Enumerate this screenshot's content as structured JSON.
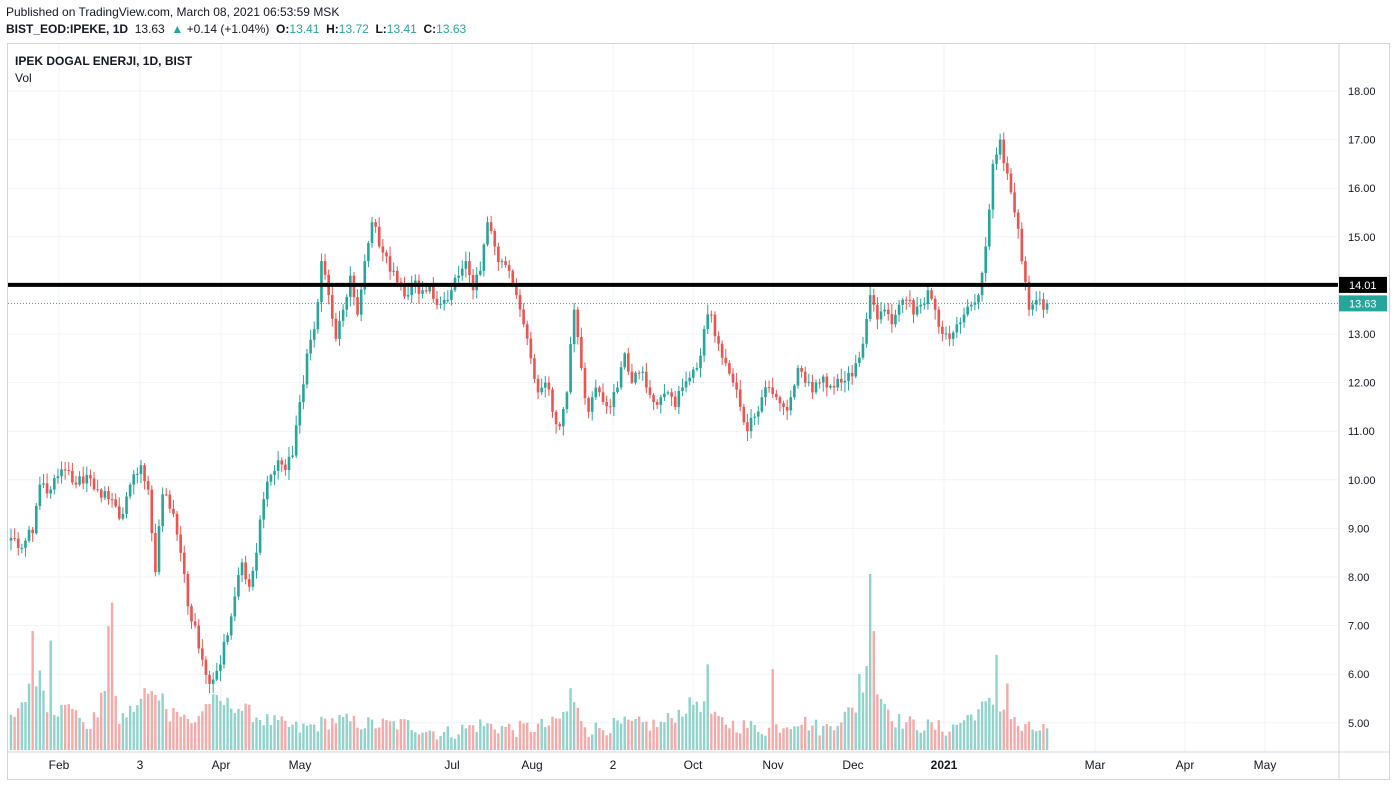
{
  "header": {
    "published": "Published on TradingView.com, March 08, 2021 06:53:59 MSK",
    "symbol": "BIST_EOD:IPEKE, 1D",
    "last": "13.63",
    "arrow": "▲",
    "change": "+0.14 (+1.04%)",
    "o_label": "O:",
    "o_val": "13.41",
    "h_label": "H:",
    "h_val": "13.72",
    "l_label": "L:",
    "l_val": "13.41",
    "c_label": "C:",
    "c_val": "13.63"
  },
  "legend": {
    "title": "IPEK DOGAL ENERJI, 1D, BIST",
    "vol": "Vol"
  },
  "chart_data": {
    "type": "candlestick",
    "title": "IPEK DOGAL ENERJI, 1D, BIST",
    "ylim": [
      4.4,
      18.5
    ],
    "y_ticks": [
      "5.00",
      "6.00",
      "7.00",
      "8.00",
      "9.00",
      "10.00",
      "11.00",
      "12.00",
      "13.00",
      "14.00",
      "15.00",
      "16.00",
      "17.00",
      "18.00"
    ],
    "x_ticks": [
      "Feb",
      "3",
      "Apr",
      "May",
      "Jul",
      "Aug",
      "2",
      "Oct",
      "Nov",
      "Dec",
      "2021",
      "Mar",
      "Apr",
      "May"
    ],
    "bold_tick": "2021",
    "grid": true,
    "horizontal_line": {
      "value": 14.01,
      "label": "14.01",
      "color": "#000000"
    },
    "last_price": {
      "value": 13.63,
      "label": "13.63",
      "color": "#26a69a"
    },
    "colors": {
      "up": "#26a69a",
      "down": "#ef5350",
      "up_vol": "#8fd3cb",
      "down_vol": "#f5a9a8"
    },
    "anchors": [
      [
        0,
        8.8
      ],
      [
        3,
        8.6
      ],
      [
        6,
        8.9
      ],
      [
        8,
        9.9
      ],
      [
        11,
        9.8
      ],
      [
        15,
        10.2
      ],
      [
        18,
        9.9
      ],
      [
        21,
        10.1
      ],
      [
        24,
        9.8
      ],
      [
        27,
        9.6
      ],
      [
        30,
        9.2
      ],
      [
        33,
        9.9
      ],
      [
        36,
        10.3
      ],
      [
        38,
        9.8
      ],
      [
        40,
        8.1
      ],
      [
        42,
        9.7
      ],
      [
        45,
        9.3
      ],
      [
        47,
        8.5
      ],
      [
        49,
        7.4
      ],
      [
        51,
        7.0
      ],
      [
        53,
        6.3
      ],
      [
        55,
        5.8
      ],
      [
        58,
        6.2
      ],
      [
        60,
        6.8
      ],
      [
        62,
        7.6
      ],
      [
        64,
        8.3
      ],
      [
        66,
        7.8
      ],
      [
        68,
        8.5
      ],
      [
        70,
        9.6
      ],
      [
        72,
        10.1
      ],
      [
        74,
        10.4
      ],
      [
        76,
        10.2
      ],
      [
        78,
        10.5
      ],
      [
        80,
        11.6
      ],
      [
        82,
        12.6
      ],
      [
        84,
        13.1
      ],
      [
        86,
        14.5
      ],
      [
        88,
        13.8
      ],
      [
        90,
        12.9
      ],
      [
        92,
        13.5
      ],
      [
        94,
        14.2
      ],
      [
        96,
        13.4
      ],
      [
        98,
        14.5
      ],
      [
        100,
        15.3
      ],
      [
        102,
        14.8
      ],
      [
        104,
        14.6
      ],
      [
        106,
        14.3
      ],
      [
        108,
        14.0
      ],
      [
        110,
        13.8
      ],
      [
        112,
        14.1
      ],
      [
        114,
        13.9
      ],
      [
        116,
        14.0
      ],
      [
        118,
        13.6
      ],
      [
        120,
        13.7
      ],
      [
        122,
        13.9
      ],
      [
        124,
        14.2
      ],
      [
        126,
        14.5
      ],
      [
        128,
        13.9
      ],
      [
        130,
        14.3
      ],
      [
        132,
        15.3
      ],
      [
        134,
        14.8
      ],
      [
        136,
        14.5
      ],
      [
        138,
        14.3
      ],
      [
        140,
        13.8
      ],
      [
        142,
        13.2
      ],
      [
        144,
        12.5
      ],
      [
        146,
        11.8
      ],
      [
        148,
        12.0
      ],
      [
        150,
        11.4
      ],
      [
        152,
        11.1
      ],
      [
        154,
        11.8
      ],
      [
        156,
        13.5
      ],
      [
        158,
        12.3
      ],
      [
        160,
        11.4
      ],
      [
        162,
        11.9
      ],
      [
        164,
        11.6
      ],
      [
        166,
        11.5
      ],
      [
        168,
        11.9
      ],
      [
        170,
        12.6
      ],
      [
        172,
        12.0
      ],
      [
        174,
        12.2
      ],
      [
        176,
        11.9
      ],
      [
        178,
        11.6
      ],
      [
        180,
        11.7
      ],
      [
        182,
        11.8
      ],
      [
        184,
        11.5
      ],
      [
        186,
        11.9
      ],
      [
        188,
        12.1
      ],
      [
        190,
        12.3
      ],
      [
        192,
        13.1
      ],
      [
        194,
        13.4
      ],
      [
        196,
        12.8
      ],
      [
        198,
        12.4
      ],
      [
        200,
        12.0
      ],
      [
        202,
        11.5
      ],
      [
        204,
        11.0
      ],
      [
        206,
        11.3
      ],
      [
        208,
        11.7
      ],
      [
        210,
        11.9
      ],
      [
        212,
        11.7
      ],
      [
        214,
        11.5
      ],
      [
        216,
        11.7
      ],
      [
        218,
        12.3
      ],
      [
        220,
        12.0
      ],
      [
        222,
        11.8
      ],
      [
        224,
        12.0
      ],
      [
        226,
        11.9
      ],
      [
        228,
        11.9
      ],
      [
        230,
        12.0
      ],
      [
        232,
        12.2
      ],
      [
        234,
        12.4
      ],
      [
        236,
        12.8
      ],
      [
        238,
        13.8
      ],
      [
        240,
        13.3
      ],
      [
        242,
        13.5
      ],
      [
        244,
        13.2
      ],
      [
        246,
        13.6
      ],
      [
        248,
        13.7
      ],
      [
        250,
        13.4
      ],
      [
        252,
        13.6
      ],
      [
        254,
        13.9
      ],
      [
        256,
        13.5
      ],
      [
        258,
        13.0
      ],
      [
        260,
        12.9
      ],
      [
        262,
        13.2
      ],
      [
        264,
        13.4
      ],
      [
        266,
        13.6
      ],
      [
        268,
        13.8
      ],
      [
        270,
        14.8
      ],
      [
        272,
        16.5
      ],
      [
        274,
        17.0
      ],
      [
        276,
        16.3
      ],
      [
        278,
        15.5
      ],
      [
        280,
        14.5
      ],
      [
        282,
        13.5
      ],
      [
        284,
        13.7
      ],
      [
        286,
        13.5
      ],
      [
        287,
        13.63
      ]
    ],
    "volume_range": [
      0,
      8.1
    ],
    "volume_anchors": [
      [
        0,
        0.6
      ],
      [
        8,
        1.6
      ],
      [
        10,
        0.9
      ],
      [
        13,
        0.8
      ],
      [
        18,
        0.9
      ],
      [
        20,
        0.4
      ],
      [
        24,
        0.7
      ],
      [
        27,
        1.6
      ],
      [
        30,
        0.6
      ],
      [
        40,
        1.2
      ],
      [
        50,
        0.5
      ],
      [
        55,
        1.0
      ],
      [
        62,
        0.9
      ],
      [
        70,
        0.6
      ],
      [
        80,
        0.4
      ],
      [
        90,
        0.6
      ],
      [
        100,
        0.5
      ],
      [
        110,
        0.5
      ],
      [
        120,
        0.3
      ],
      [
        130,
        0.5
      ],
      [
        140,
        0.4
      ],
      [
        150,
        0.5
      ],
      [
        156,
        0.9
      ],
      [
        160,
        0.4
      ],
      [
        170,
        0.5
      ],
      [
        180,
        0.5
      ],
      [
        190,
        1.0
      ],
      [
        195,
        0.6
      ],
      [
        200,
        0.5
      ],
      [
        210,
        0.4
      ],
      [
        218,
        0.6
      ],
      [
        225,
        0.4
      ],
      [
        235,
        0.9
      ],
      [
        238,
        2.0
      ],
      [
        240,
        1.2
      ],
      [
        245,
        0.6
      ],
      [
        250,
        0.5
      ],
      [
        260,
        0.4
      ],
      [
        270,
        0.9
      ],
      [
        273,
        1.0
      ],
      [
        276,
        0.7
      ],
      [
        280,
        0.4
      ],
      [
        287,
        0.4
      ]
    ],
    "volume_spikes": [
      [
        6,
        2.5
      ],
      [
        11,
        2.3
      ],
      [
        28,
        3.1
      ],
      [
        27,
        2.6
      ],
      [
        37,
        1.3
      ],
      [
        44,
        0.6
      ],
      [
        155,
        1.3
      ],
      [
        193,
        1.8
      ],
      [
        211,
        1.7
      ],
      [
        235,
        1.6
      ],
      [
        238,
        3.7
      ],
      [
        239,
        2.5
      ],
      [
        273,
        2.0
      ],
      [
        276,
        1.4
      ]
    ]
  }
}
